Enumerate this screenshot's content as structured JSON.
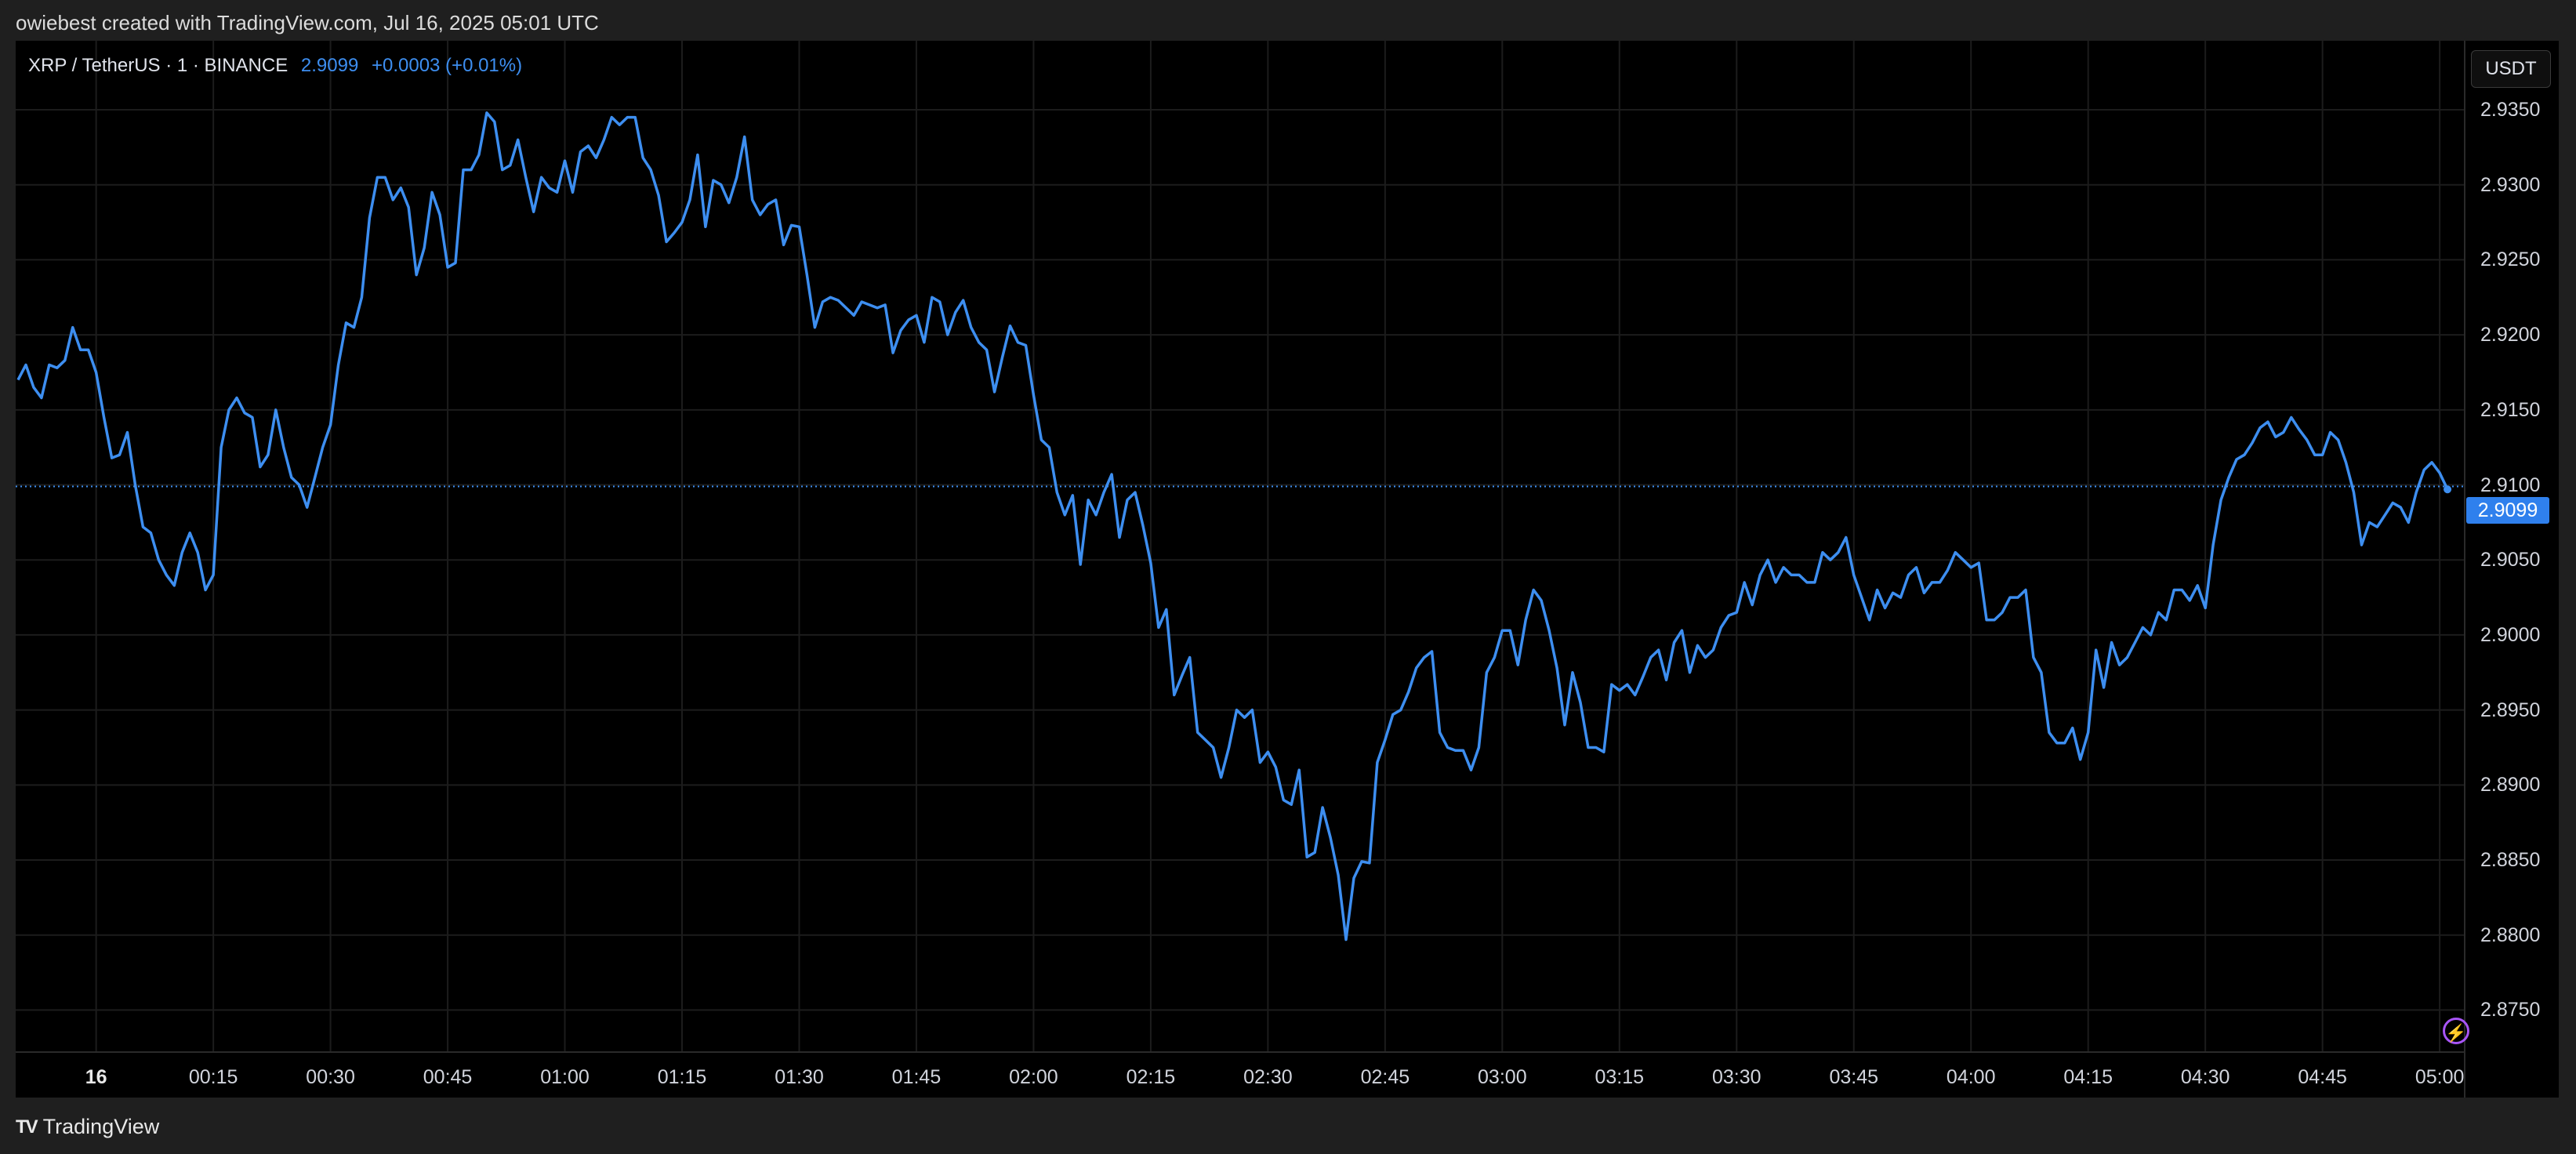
{
  "header": {
    "credit": "owiebest created with TradingView.com, Jul 16, 2025 05:01 UTC"
  },
  "symbol": {
    "name": "XRP / TetherUS · 1 · BINANCE",
    "price": "2.9099",
    "change": "+0.0003 (+0.01%)"
  },
  "currency_button": "USDT",
  "current_price_label": "2.9099",
  "footer": {
    "brand": "TradingView"
  },
  "colors": {
    "line": "#3d8ef0",
    "price_tag": "#2f80ed",
    "background": "#000000",
    "alert_icon": "#a855f7"
  },
  "icons": {
    "alert": "lightning-bolt-icon",
    "logo": "tradingview-logo-icon"
  },
  "chart_data": {
    "type": "line",
    "title": "XRP / TetherUS · 1 · BINANCE",
    "xlabel": "",
    "ylabel": "",
    "ylim": [
      2.8722,
      2.9396
    ],
    "y_ticks": [
      "2.9350",
      "2.9300",
      "2.9250",
      "2.9200",
      "2.9150",
      "2.9100",
      "2.9050",
      "2.9000",
      "2.8950",
      "2.8900",
      "2.8850",
      "2.8800",
      "2.8750"
    ],
    "y_tick_values": [
      2.935,
      2.93,
      2.925,
      2.92,
      2.915,
      2.91,
      2.905,
      2.9,
      2.895,
      2.89,
      2.885,
      2.88,
      2.875
    ],
    "x_ticks": [
      "16",
      "00:15",
      "00:30",
      "00:45",
      "01:00",
      "01:15",
      "01:30",
      "01:45",
      "02:00",
      "02:15",
      "02:30",
      "02:45",
      "03:00",
      "03:15",
      "03:30",
      "03:45",
      "04:00",
      "04:15",
      "04:30",
      "04:45",
      "05:00"
    ],
    "x_tick_minutes": [
      0,
      15,
      30,
      45,
      60,
      75,
      90,
      105,
      120,
      135,
      150,
      165,
      180,
      195,
      210,
      225,
      240,
      255,
      270,
      285,
      300
    ],
    "x_start_minute": -10.3,
    "x_end_minute": 303.2,
    "current_price": 2.9099,
    "grid": true,
    "series": [
      {
        "color": "#3d8ef0",
        "minutes": [
          -10,
          -9,
          -8,
          -7,
          -6,
          -5,
          -4,
          -3,
          -2,
          -1,
          0,
          1,
          2,
          3,
          4,
          5,
          6,
          7,
          8,
          9,
          10,
          11,
          12,
          13,
          14,
          15,
          16,
          17,
          18,
          19,
          20,
          21,
          22,
          23,
          24,
          25,
          26,
          27,
          28,
          29,
          30,
          31,
          32,
          33,
          34,
          35,
          36,
          37,
          38,
          39,
          40,
          41,
          42,
          43,
          44,
          45,
          46,
          47,
          48,
          49,
          50,
          51,
          52,
          53,
          54,
          55,
          56,
          57,
          58,
          59,
          60,
          61,
          62,
          63,
          64,
          65,
          66,
          67,
          68,
          69,
          70,
          71,
          72,
          73,
          74,
          75,
          76,
          77,
          78,
          79,
          80,
          81,
          82,
          83,
          84,
          85,
          86,
          87,
          88,
          89,
          90,
          91,
          92,
          93,
          94,
          95,
          96,
          97,
          98,
          99,
          100,
          101,
          102,
          103,
          104,
          105,
          106,
          107,
          108,
          109,
          110,
          111,
          112,
          113,
          114,
          115,
          116,
          117,
          118,
          119,
          120,
          121,
          122,
          123,
          124,
          125,
          126,
          127,
          128,
          129,
          130,
          131,
          132,
          133,
          134,
          135,
          136,
          137,
          138,
          139,
          140,
          141,
          142,
          143,
          144,
          145,
          146,
          147,
          148,
          149,
          150,
          151,
          152,
          153,
          154,
          155,
          156,
          157,
          158,
          159,
          160,
          161,
          162,
          163,
          164,
          165,
          166,
          167,
          168,
          169,
          170,
          171,
          172,
          173,
          174,
          175,
          176,
          177,
          178,
          179,
          180,
          181,
          182,
          183,
          184,
          185,
          186,
          187,
          188,
          189,
          190,
          191,
          192,
          193,
          194,
          195,
          196,
          197,
          198,
          199,
          200,
          201,
          202,
          203,
          204,
          205,
          206,
          207,
          208,
          209,
          210,
          211,
          212,
          213,
          214,
          215,
          216,
          217,
          218,
          219,
          220,
          221,
          222,
          223,
          224,
          225,
          226,
          227,
          228,
          229,
          230,
          231,
          232,
          233,
          234,
          235,
          236,
          237,
          238,
          239,
          240,
          241,
          242,
          243,
          244,
          245,
          246,
          247,
          248,
          249,
          250,
          251,
          252,
          253,
          254,
          255,
          256,
          257,
          258,
          259,
          260,
          261,
          262,
          263,
          264,
          265,
          266,
          267,
          268,
          269,
          270,
          271,
          272,
          273,
          274,
          275,
          276,
          277,
          278,
          279,
          280,
          281,
          282,
          283,
          284,
          285,
          286,
          287,
          288,
          289,
          290,
          291,
          292,
          293,
          294,
          295,
          296,
          297,
          298,
          299,
          300,
          301
        ],
        "values": [
          2.917,
          2.918,
          2.9165,
          2.9158,
          2.918,
          2.9178,
          2.9183,
          2.9205,
          2.919,
          2.919,
          2.9175,
          2.9145,
          2.9118,
          2.912,
          2.9135,
          2.91,
          2.9072,
          2.9068,
          2.905,
          2.904,
          2.9033,
          2.9055,
          2.9068,
          2.9055,
          2.903,
          2.904,
          2.9125,
          2.915,
          2.9158,
          2.9148,
          2.9145,
          2.9112,
          2.912,
          2.915,
          2.9125,
          2.9105,
          2.91,
          2.9085,
          2.9105,
          2.9125,
          2.914,
          2.918,
          2.9208,
          2.9205,
          2.9225,
          2.9278,
          2.9305,
          2.9305,
          2.929,
          2.9298,
          2.9285,
          2.924,
          2.9258,
          2.9295,
          2.928,
          2.9245,
          2.9248,
          2.931,
          2.931,
          2.932,
          2.9348,
          2.9342,
          2.931,
          2.9313,
          2.933,
          2.9305,
          2.9282,
          2.9305,
          2.9298,
          2.9295,
          2.9316,
          2.9295,
          2.9322,
          2.9326,
          2.9318,
          2.933,
          2.9345,
          2.934,
          2.9345,
          2.9345,
          2.9318,
          2.931,
          2.9293,
          2.9262,
          2.9268,
          2.9275,
          2.929,
          2.932,
          2.9272,
          2.9303,
          2.93,
          2.9288,
          2.9305,
          2.9332,
          2.929,
          2.928,
          2.9287,
          2.929,
          2.926,
          2.9273,
          2.9272,
          2.924,
          2.9205,
          2.9222,
          2.9225,
          2.9223,
          2.9218,
          2.9213,
          2.9222,
          2.922,
          2.9218,
          2.922,
          2.9188,
          2.9203,
          2.921,
          2.9213,
          2.9195,
          2.9225,
          2.9222,
          2.92,
          2.9215,
          2.9223,
          2.9205,
          2.9195,
          2.919,
          2.9162,
          2.9185,
          2.9206,
          2.9195,
          2.9193,
          2.916,
          2.913,
          2.9125,
          2.9095,
          2.908,
          2.9093,
          2.9047,
          2.909,
          2.908,
          2.9095,
          2.9107,
          2.9065,
          2.909,
          2.9095,
          2.9073,
          2.9048,
          2.9005,
          2.9017,
          2.896,
          2.8973,
          2.8985,
          2.8935,
          2.893,
          2.8925,
          2.8905,
          2.8925,
          2.895,
          2.8945,
          2.895,
          2.8915,
          2.8922,
          2.8912,
          2.889,
          2.8887,
          2.891,
          2.8852,
          2.8855,
          2.8885,
          2.8865,
          2.884,
          2.8797,
          2.8838,
          2.8849,
          2.8848,
          2.8915,
          2.893,
          2.8947,
          2.895,
          2.8962,
          2.8978,
          2.8985,
          2.8989,
          2.8935,
          2.8925,
          2.8923,
          2.8923,
          2.891,
          2.8925,
          2.8975,
          2.8985,
          2.9003,
          2.9003,
          2.898,
          2.901,
          2.903,
          2.9023,
          2.9003,
          2.8978,
          2.894,
          2.8975,
          2.8955,
          2.8925,
          2.8925,
          2.8922,
          2.8967,
          2.8963,
          2.8967,
          2.896,
          2.8972,
          2.8985,
          2.899,
          2.897,
          2.8995,
          2.9003,
          2.8975,
          2.8993,
          2.8985,
          2.899,
          2.9005,
          2.9013,
          2.9015,
          2.9035,
          2.902,
          2.904,
          2.905,
          2.9035,
          2.9045,
          2.904,
          2.904,
          2.9035,
          2.9035,
          2.9055,
          2.905,
          2.9055,
          2.9065,
          2.904,
          2.9025,
          2.901,
          2.903,
          2.9018,
          2.9028,
          2.9025,
          2.904,
          2.9045,
          2.9028,
          2.9035,
          2.9035,
          2.9043,
          2.9055,
          2.905,
          2.9045,
          2.9048,
          2.901,
          2.901,
          2.9015,
          2.9025,
          2.9025,
          2.903,
          2.8985,
          2.8975,
          2.8935,
          2.8928,
          2.8928,
          2.8938,
          2.8917,
          2.8935,
          2.899,
          2.8965,
          2.8995,
          2.898,
          2.8985,
          2.8995,
          2.9005,
          2.9,
          2.9015,
          2.901,
          2.903,
          2.903,
          2.9023,
          2.9033,
          2.9018,
          2.906,
          2.909,
          2.9105,
          2.9117,
          2.912,
          2.9128,
          2.9138,
          2.9142,
          2.9132,
          2.9135,
          2.9145,
          2.9137,
          2.913,
          2.912,
          2.912,
          2.9135,
          2.913,
          2.9115,
          2.9095,
          2.906,
          2.9075,
          2.9072,
          2.908,
          2.9088,
          2.9085,
          2.9075,
          2.9095,
          2.911,
          2.9115,
          2.9108,
          2.9097,
          2.9099
        ]
      }
    ]
  }
}
